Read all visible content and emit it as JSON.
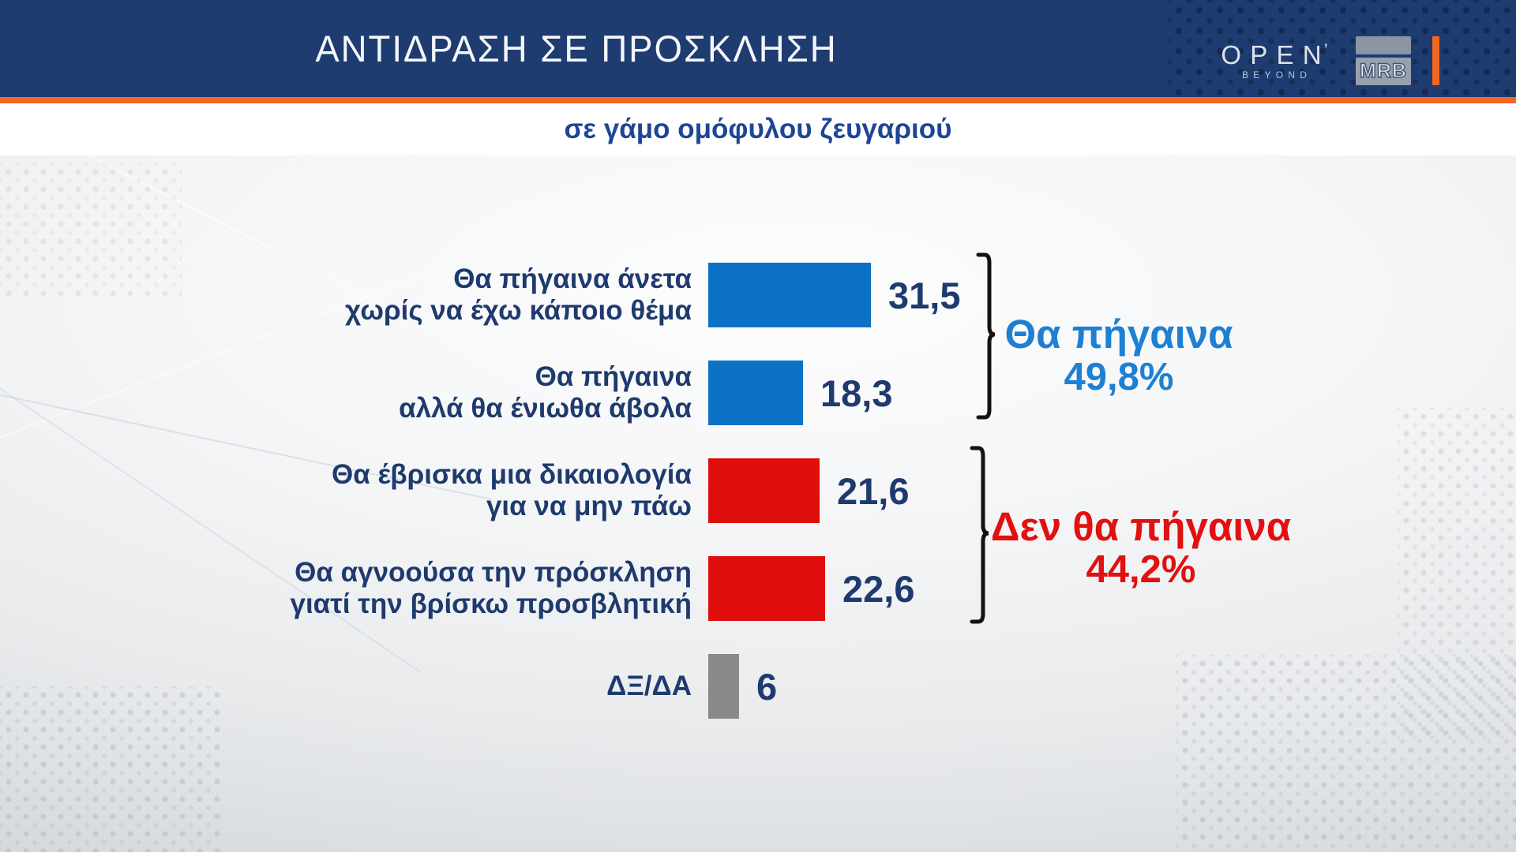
{
  "header": {
    "title": "ΑΝΤΙΔΡΑΣΗ ΣΕ ΠΡΟΣΚΛΗΣΗ",
    "open_logo": {
      "text": "OPEN",
      "subtext": "BEYOND"
    },
    "mrb_logo": "MRB"
  },
  "subtitle": "σε γάμο ομόφυλου ζευγαριού",
  "chart_data": {
    "type": "bar",
    "orientation": "horizontal",
    "unit": "percent",
    "title": "ΑΝΤΙΔΡΑΣΗ ΣΕ ΠΡΟΣΚΛΗΣΗ",
    "subtitle": "σε γάμο ομόφυλου ζευγαριού",
    "grid": false,
    "legend": "none",
    "xlim": [
      0,
      35
    ],
    "categories": [
      "Θα πήγαινα άνετα χωρίς να έχω κάποιο θέμα",
      "Θα πήγαινα αλλά θα ένιωθα άβολα",
      "Θα έβρισκα μια δικαιολογία για να μην πάω",
      "Θα αγνοούσα την πρόσκληση γιατί την βρίσκω προσβλητική",
      "ΔΞ/ΔΑ"
    ],
    "values": [
      31.5,
      18.3,
      21.6,
      22.6,
      6
    ],
    "rows": [
      {
        "label_lines": [
          "Θα πήγαινα άνετα",
          "χωρίς να έχω κάποιο θέμα"
        ],
        "value": 31.5,
        "value_display": "31,5",
        "color_key": "blue"
      },
      {
        "label_lines": [
          "Θα πήγαινα",
          "αλλά θα ένιωθα άβολα"
        ],
        "value": 18.3,
        "value_display": "18,3",
        "color_key": "blue"
      },
      {
        "label_lines": [
          "Θα έβρισκα μια δικαιολογία",
          "για να μην πάω"
        ],
        "value": 21.6,
        "value_display": "21,6",
        "color_key": "red"
      },
      {
        "label_lines": [
          "Θα αγνοούσα την πρόσκληση",
          "γιατί την βρίσκω προσβλητική"
        ],
        "value": 22.6,
        "value_display": "22,6",
        "color_key": "red"
      },
      {
        "label_lines": [
          "ΔΞ/ΔΑ"
        ],
        "value": 6,
        "value_display": "6",
        "color_key": "gray"
      }
    ],
    "groups": [
      {
        "label": "Θα πήγαινα",
        "value": 49.8,
        "value_display": "49,8%",
        "color_key": "groupBlue",
        "covers_rows": [
          0,
          1
        ]
      },
      {
        "label": "Δεν θα πήγαινα",
        "value": 44.2,
        "value_display": "44,2%",
        "color_key": "groupRed",
        "covers_rows": [
          2,
          3
        ]
      }
    ]
  },
  "colors": {
    "blue": "#0b72c6",
    "red": "#e00d0d",
    "gray": "#8a8a8a",
    "navy": "#1e3a6e",
    "groupBlue": "#1d80d2",
    "groupRed": "#e21010",
    "headerNavy": "#1e3c70",
    "orange": "#f26522",
    "subtitleBlue": "#1e4596",
    "bracket": "#121212"
  }
}
